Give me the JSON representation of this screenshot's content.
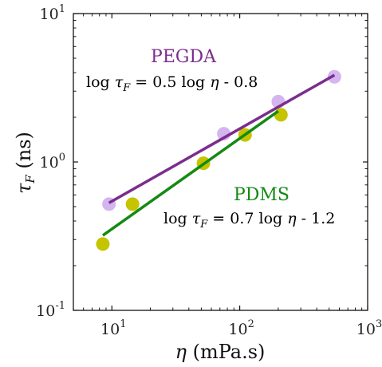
{
  "chart_data": {
    "type": "scatter",
    "x_scale": "log",
    "y_scale": "log",
    "xlim": [
      5,
      1000
    ],
    "ylim": [
      0.1,
      10
    ],
    "xlabel": "η (mPa.s)",
    "ylabel": "τF (ns)",
    "x_ticks": [
      {
        "value": 10,
        "base": "10",
        "exp": "1"
      },
      {
        "value": 100,
        "base": "10",
        "exp": "2"
      },
      {
        "value": 1000,
        "base": "10",
        "exp": "3"
      }
    ],
    "y_ticks": [
      {
        "value": 0.1,
        "base": "10",
        "exp": "-1"
      },
      {
        "value": 1,
        "base": "10",
        "exp": "0"
      },
      {
        "value": 10,
        "base": "10",
        "exp": "1"
      }
    ],
    "series": [
      {
        "name": "PEGDA",
        "color": "#d4b5ef",
        "fit_color": "#7b2d8e",
        "points": [
          [
            9.5,
            0.52
          ],
          [
            75,
            1.55
          ],
          [
            200,
            2.55
          ],
          [
            550,
            3.75
          ]
        ],
        "fit": {
          "x": [
            9.5,
            550
          ],
          "y": [
            0.53,
            3.85
          ]
        },
        "equation": "log τF = 0.5 log η - 0.8"
      },
      {
        "name": "PDMS",
        "color": "#c4c400",
        "fit_color": "#138a13",
        "points": [
          [
            8.5,
            0.28
          ],
          [
            14.5,
            0.52
          ],
          [
            52,
            0.98
          ],
          [
            110,
            1.52
          ],
          [
            210,
            2.08
          ]
        ],
        "fit": {
          "x": [
            8.5,
            200
          ],
          "y": [
            0.32,
            2.2
          ]
        },
        "equation": "log τF = 0.7 log η - 1.2"
      }
    ],
    "annotations": [
      {
        "series": "PEGDA",
        "label": "PEGDA",
        "color": "#7b2d8e",
        "eq_lhs": "log ",
        "eq_var": "τ",
        "eq_sub": "F",
        "eq_mid": " = 0.5 log ",
        "eq_eta": "η",
        "eq_rhs": " - 0.8"
      },
      {
        "series": "PDMS",
        "label": "PDMS",
        "color": "#138a13",
        "eq_lhs": "log ",
        "eq_var": "τ",
        "eq_sub": "F",
        "eq_mid": " = 0.7 log ",
        "eq_eta": "η",
        "eq_rhs": " - 1.2"
      }
    ],
    "grid": false,
    "legend": "none"
  }
}
